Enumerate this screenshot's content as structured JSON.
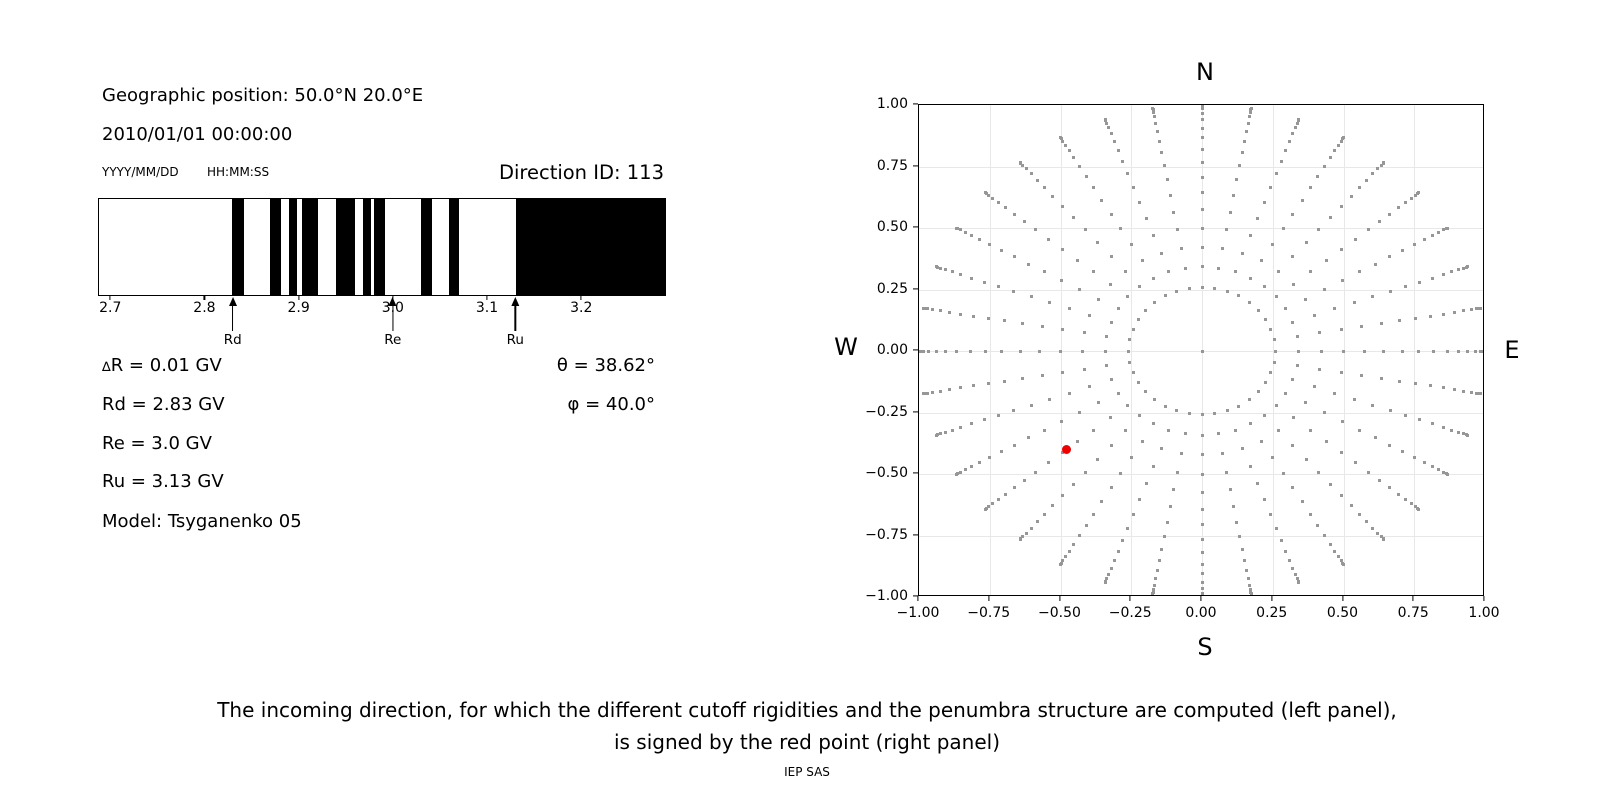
{
  "header": {
    "geo_position": "Geographic position: 50.0°N 20.0°E",
    "datetime": "2010/01/01 00:00:00",
    "date_format": "YYYY/MM/DD",
    "time_format": "HH:MM:SS",
    "direction_id": "Direction ID: 113"
  },
  "parameters": {
    "delta_symbol": "∆",
    "delta_rest": "R = 0.01 GV",
    "rd": "Rd = 2.83 GV",
    "re": "Re = 3.0 GV",
    "ru": "Ru = 3.13 GV",
    "model": "Model: Tsyganenko 05",
    "theta": "θ = 38.62°",
    "phi": "φ = 40.0°"
  },
  "chart_data": [
    {
      "type": "bar",
      "name": "penumbra-structure",
      "description": "Penumbra structure between lower (Rd) and upper (Ru) cutoff rigidity; black bands are forbidden rigidity intervals in GV",
      "xlim": [
        2.687,
        3.29
      ],
      "xticks": [
        2.7,
        2.8,
        2.9,
        3.0,
        3.1,
        3.2
      ],
      "xtick_labels": [
        "2.7",
        "2.8",
        "2.9",
        "3.0",
        "3.1",
        "3.2"
      ],
      "band_color": "#000000",
      "forbidden_bands_gv": [
        [
          2.829,
          2.841
        ],
        [
          2.869,
          2.881
        ],
        [
          2.889,
          2.898
        ],
        [
          2.903,
          2.92
        ],
        [
          2.94,
          2.96
        ],
        [
          2.968,
          2.977
        ],
        [
          2.98,
          2.992
        ],
        [
          3.03,
          3.042
        ],
        [
          3.06,
          3.071
        ],
        [
          3.131,
          3.29
        ]
      ],
      "markers": [
        {
          "label": "Rd",
          "value": 2.83
        },
        {
          "label": "Re",
          "value": 3.0
        },
        {
          "label": "Ru",
          "value": 3.13
        }
      ]
    },
    {
      "type": "scatter",
      "name": "incoming-directions",
      "description": "Grid of incoming directions (radius = sin(zenith), azimuth every 10 deg); red point marks the selected incoming direction",
      "xlim": [
        -1,
        1
      ],
      "ylim": [
        -1,
        1
      ],
      "xticks": [
        -1,
        -0.75,
        -0.5,
        -0.25,
        0,
        0.25,
        0.5,
        0.75,
        1
      ],
      "yticks": [
        1,
        0.75,
        0.5,
        0.25,
        0,
        -0.25,
        -0.5,
        -0.75,
        -1
      ],
      "xtick_labels": [
        "−1.00",
        "−0.75",
        "−0.50",
        "−0.25",
        "0.00",
        "0.25",
        "0.50",
        "0.75",
        "1.00"
      ],
      "ytick_labels": [
        "1.00",
        "0.75",
        "0.50",
        "0.25",
        "0.00",
        "−0.25",
        "−0.50",
        "−0.75",
        "−1.00"
      ],
      "grid": true,
      "grid_color": "#e8e8e8",
      "compass": {
        "top": "N",
        "bottom": "S",
        "left": "W",
        "right": "E"
      },
      "direction_grid": {
        "color": "#979797",
        "azimuth_deg": {
          "start": 0,
          "stop": 350,
          "step": 10
        },
        "zenith_deg": {
          "start": 15,
          "stop": 90,
          "step": 5
        },
        "radius_rule": "sin(zenith)",
        "center_point": true
      },
      "selected_direction": {
        "color": "#ee0000",
        "x": -0.478,
        "y": -0.401
      }
    }
  ],
  "caption": {
    "line1": "The incoming direction, for which the different cutoff rigidities and the penumbra structure are computed (left panel),",
    "line2": "is signed by the red point (right panel)",
    "credit": "IEP SAS"
  }
}
